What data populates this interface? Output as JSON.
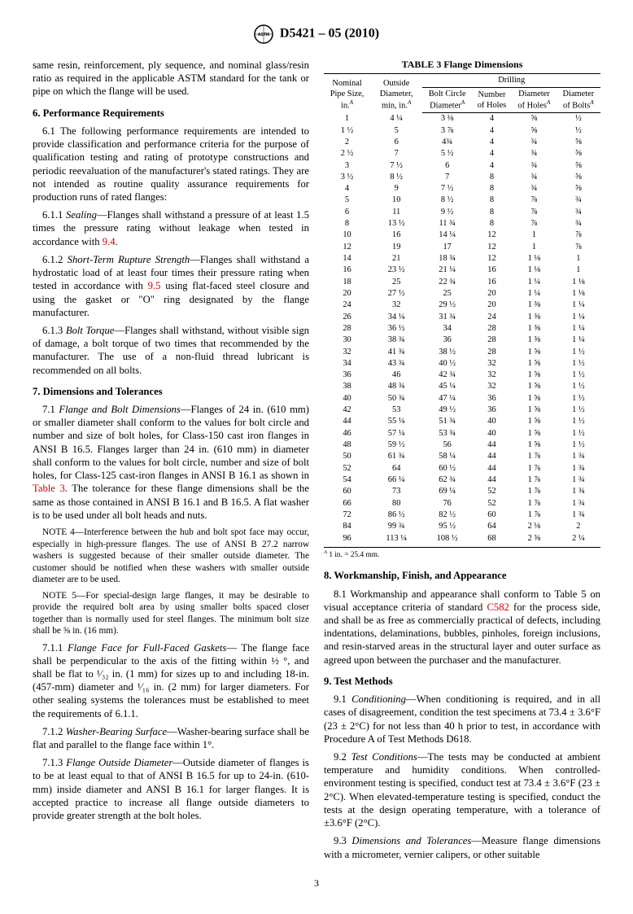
{
  "header": {
    "doc_number": "D5421 – 05 (2010)"
  },
  "left": {
    "p1": "same resin, reinforcement, ply sequence, and nominal glass/resin ratio as required in the applicable ASTM standard for the tank or pipe on which the flange will be used.",
    "s6": "6. Performance Requirements",
    "p61": "6.1 The following performance requirements are intended to provide classification and performance criteria for the purpose of qualification testing and rating of prototype constructions and periodic reevaluation of the manufacturer's stated ratings. They are not intended as routine quality assurance requirements for production runs of rated flanges:",
    "p611a": "6.1.1 ",
    "p611i": "Sealing",
    "p611b": "—Flanges shall withstand a pressure of at least 1.5 times the pressure rating without leakage when tested in accordance with ",
    "p611r": "9.4",
    "p611c": ".",
    "p612a": "6.1.2 ",
    "p612i": "Short-Term Rupture Strength",
    "p612b": "—Flanges shall withstand a hydrostatic load of at least four times their pressure rating when tested in accordance with ",
    "p612r": "9.5",
    "p612c": " using flat-faced steel closure and using the gasket or \"O\" ring designated by the flange manufacturer.",
    "p613a": "6.1.3 ",
    "p613i": "Bolt Torque",
    "p613b": "—Flanges shall withstand, without visible sign of damage, a bolt torque of two times that recommended by the manufacturer. The use of a non-fluid thread lubricant is recommended on all bolts.",
    "s7": "7. Dimensions and Tolerances",
    "p71a": "7.1 ",
    "p71i": "Flange and Bolt Dimensions",
    "p71b": "—Flanges of 24 in. (610 mm) or smaller diameter shall conform to the values for bolt circle and number and size of bolt holes, for Class-150 cast iron flanges in ANSI B 16.5. Flanges larger than 24 in. (610 mm) in diameter shall conform to the values for bolt circle, number and size of bolt holes, for Class-125 cast-iron flanges in ANSI B 16.1 as shown in ",
    "p71r": "Table 3",
    "p71c": ". The tolerance for these flange dimensions shall be the same as those contained in ANSI B 16.1 and B 16.5. A flat washer is to be used under all bolt heads and nuts.",
    "n4": "NOTE 4—Interference between the hub and bolt spot face may occur, especially in high-pressure flanges. The use of ANSI B 27.2 narrow washers is suggested because of their smaller outside diameter. The customer should be notified when these washers with smaller outside diameter are to be used.",
    "n5": "NOTE 5—For special-design large flanges, it may be desirable to provide the required bolt area by using smaller bolts spaced closer together than is normally used for steel flanges. The minimum bolt size shall be ⅝ in. (16 mm).",
    "p711a": "7.1.1 ",
    "p711i": "Flange Face for Full-Faced Gaskets",
    "p711b": "— The flange face shall be perpendicular to the axis of the fitting within ½ °, and shall be flat to ¹⁄₃₂ in. (1 mm) for sizes up to and including 18-in. (457-mm) diameter and ¹⁄₁₆ in. (2 mm) for larger diameters. For other sealing systems the tolerances must be established to meet the requirements of 6.1.1.",
    "p712a": "7.1.2 ",
    "p712i": "Washer-Bearing Surface",
    "p712b": "—Washer-bearing surface shall be flat and parallel to the flange face within 1°.",
    "p713a": "7.1.3 ",
    "p713i": "Flange Outside Diameter",
    "p713b": "—Outside diameter of flanges is to be at least equal to that of ANSI B 16.5 for up to 24-in. (610-mm) inside diameter and ANSI B 16.1 for larger flanges. It is accepted practice to increase all flange outside diameters to provide greater strength at the bolt holes."
  },
  "table": {
    "title": "TABLE 3 Flange Dimensions",
    "h1": "Nominal Pipe Size, in.",
    "h2": "Outside Diameter, min, in.",
    "h3": "Drilling",
    "h3a": "Bolt Circle Diameter",
    "h3b": "Number of Holes",
    "h3c": "Diameter of Holes",
    "h3d": "Diameter of Bolts",
    "rows": [
      [
        "1",
        "4 ¼",
        "3 ⅛",
        "4",
        "⅝",
        "½"
      ],
      [
        "1 ½",
        "5",
        "3 ⅞",
        "4",
        "⅝",
        "½"
      ],
      [
        "2",
        "6",
        "4¾",
        "4",
        "¾",
        "⅝"
      ],
      [
        "2 ½",
        "7",
        "5 ½",
        "4",
        "¾",
        "⅝"
      ],
      [
        "3",
        "7 ½",
        "6",
        "4",
        "¾",
        "⅝"
      ],
      [
        "3 ½",
        "8 ½",
        "7",
        "8",
        "¾",
        "⅝"
      ],
      [
        "4",
        "9",
        "7 ½",
        "8",
        "¾",
        "⅝"
      ],
      [
        "5",
        "10",
        "8 ½",
        "8",
        "⅞",
        "¾"
      ],
      [
        "6",
        "11",
        "9 ½",
        "8",
        "⅞",
        "¾"
      ],
      [
        "8",
        "13 ½",
        "11 ¾",
        "8",
        "⅞",
        "¾"
      ],
      [
        "10",
        "16",
        "14 ¼",
        "12",
        "1",
        "⅞"
      ],
      [
        "12",
        "19",
        "17",
        "12",
        "1",
        "⅞"
      ],
      [
        "14",
        "21",
        "18 ¾",
        "12",
        "1 ⅛",
        "1"
      ],
      [
        "16",
        "23 ½",
        "21 ¼",
        "16",
        "1 ⅛",
        "1"
      ],
      [
        "18",
        "25",
        "22 ¾",
        "16",
        "1 ¼",
        "1 ⅛"
      ],
      [
        "20",
        "27 ½",
        "25",
        "20",
        "1 ¼",
        "1 ⅛"
      ],
      [
        "24",
        "32",
        "29 ½",
        "20",
        "1 ⅜",
        "1 ¼"
      ],
      [
        "26",
        "34 ¼",
        "31 ¾",
        "24",
        "1 ⅜",
        "1 ¼"
      ],
      [
        "28",
        "36 ½",
        "34",
        "28",
        "1 ⅜",
        "1 ¼"
      ],
      [
        "30",
        "38 ¾",
        "36",
        "28",
        "1 ⅜",
        "1 ¼"
      ],
      [
        "32",
        "41 ¾",
        "38 ½",
        "28",
        "1 ⅝",
        "1 ½"
      ],
      [
        "34",
        "43 ¾",
        "40 ½",
        "32",
        "1 ⅝",
        "1 ½"
      ],
      [
        "36",
        "46",
        "42 ¾",
        "32",
        "1 ⅝",
        "1 ½"
      ],
      [
        "38",
        "48 ¾",
        "45 ¼",
        "32",
        "1 ⅝",
        "1 ½"
      ],
      [
        "40",
        "50 ¾",
        "47 ¼",
        "36",
        "1 ⅝",
        "1 ½"
      ],
      [
        "42",
        "53",
        "49 ½",
        "36",
        "1 ⅝",
        "1 ½"
      ],
      [
        "44",
        "55 ¼",
        "51 ¾",
        "40",
        "1 ⅝",
        "1 ½"
      ],
      [
        "46",
        "57 ¼",
        "53 ¾",
        "40",
        "1 ⅝",
        "1 ½"
      ],
      [
        "48",
        "59 ½",
        "56",
        "44",
        "1 ⅝",
        "1 ½"
      ],
      [
        "50",
        "61 ¾",
        "58 ¼",
        "44",
        "1 ⅞",
        "1 ¾"
      ],
      [
        "52",
        "64",
        "60 ½",
        "44",
        "1 ⅞",
        "1 ¾"
      ],
      [
        "54",
        "66 ¼",
        "62 ¾",
        "44",
        "1 ⅞",
        "1 ¾"
      ],
      [
        "60",
        "73",
        "69 ¼",
        "52",
        "1 ⅞",
        "1 ¾"
      ],
      [
        "66",
        "80",
        "76",
        "52",
        "1 ⅞",
        "1 ¾"
      ],
      [
        "72",
        "86 ½",
        "82 ½",
        "60",
        "1 ⅞",
        "1 ¾"
      ],
      [
        "84",
        "99 ¾",
        "95 ½",
        "64",
        "2 ⅛",
        "2"
      ],
      [
        "96",
        "113 ¼",
        "108 ½",
        "68",
        "2 ⅜",
        "2 ¼"
      ]
    ],
    "footnote": "1 in. = 25.4 mm."
  },
  "right": {
    "s8": "8. Workmanship, Finish, and Appearance",
    "p81a": "8.1 Workmanship and appearance shall conform to Table 5 on visual acceptance criteria of standard ",
    "p81r": "C582",
    "p81b": " for the process side, and shall be as free as commercially practical of defects, including indentations, delaminations, bubbles, pinholes, foreign inclusions, and resin-starved areas in the structural layer and outer surface as agreed upon between the purchaser and the manufacturer.",
    "s9": "9. Test Methods",
    "p91a": "9.1 ",
    "p91i": "Conditioning",
    "p91b": "—When conditioning is required, and in all cases of disagreement, condition the test specimens at 73.4 ± 3.6°F (23 ± 2°C) for not less than 40 h prior to test, in accordance with Procedure A of Test Methods D618.",
    "p92a": "9.2 ",
    "p92i": "Test Conditions",
    "p92b": "—The tests may be conducted at ambient temperature and humidity conditions. When controlled-environment testing is specified, conduct test at 73.4 ± 3.6°F (23 ± 2°C). When elevated-temperature testing is specified, conduct the tests at the design operating temperature, with a tolerance of ±3.6°F (2°C).",
    "p93a": "9.3 ",
    "p93i": "Dimensions and Tolerances",
    "p93b": "—Measure flange dimensions with a micrometer, vernier calipers, or other suitable"
  },
  "page": "3"
}
